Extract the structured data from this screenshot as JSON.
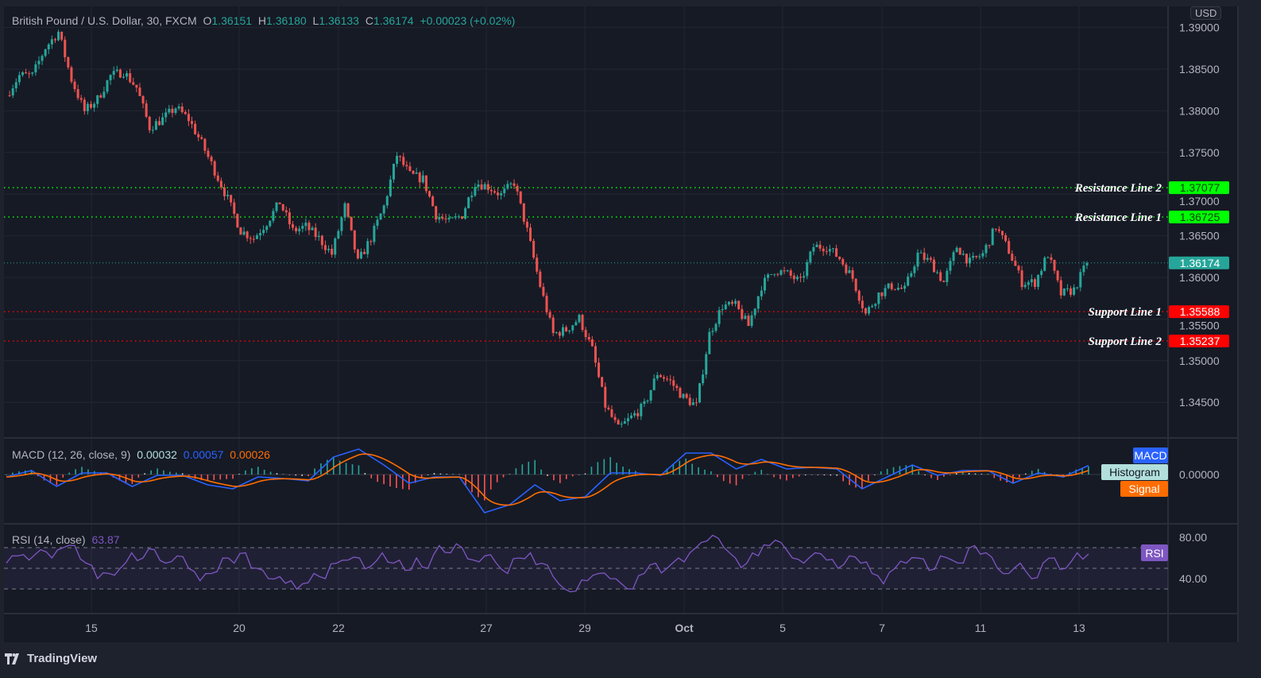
{
  "header": {
    "symbol": "British Pound / U.S. Dollar, 30, FXCM",
    "open_label": "O",
    "open": "1.36151",
    "high_label": "H",
    "high": "1.36180",
    "low_label": "L",
    "low": "1.36133",
    "close_label": "C",
    "close": "1.36174",
    "change": "+0.00023 (+0.02%)"
  },
  "currency": "USD",
  "macd_legend": {
    "title": "MACD (12, 26, close, 9)",
    "histogram": "0.00032",
    "macd": "0.00057",
    "signal": "0.00026"
  },
  "rsi_legend": {
    "title": "RSI (14, close)",
    "value": "63.87"
  },
  "branding": {
    "name": "TradingView"
  },
  "colors": {
    "up": "#26a69a",
    "down": "#ef5350",
    "macd": "#2962ff",
    "signal": "#ff6d00",
    "rsi": "#7e57c2",
    "resistance": "#00ff00",
    "support": "#ff0000",
    "background": "#161a25"
  },
  "chart_data": [
    {
      "type": "candlestick",
      "title": "British Pound / U.S. Dollar, 30, FXCM",
      "x_ticks": [
        "15",
        "20",
        "22",
        "27",
        "29",
        "Oct",
        "5",
        "7",
        "11",
        "13"
      ],
      "y_ticks": [
        "1.39000",
        "1.38500",
        "1.38000",
        "1.37500",
        "1.37000",
        "1.36500",
        "1.36000",
        "1.35500",
        "1.35000",
        "1.34500"
      ],
      "ylim": [
        1.3405,
        1.3905
      ],
      "grid": true,
      "close_path": [
        1.38185,
        1.38424,
        1.38424,
        1.38758,
        1.38948,
        1.38376,
        1.37994,
        1.3814,
        1.3842,
        1.3847,
        1.3828,
        1.378,
        1.379,
        1.3804,
        1.379,
        1.3761,
        1.3728,
        1.3694,
        1.3656,
        1.3647,
        1.3666,
        1.369,
        1.3656,
        1.3661,
        1.3647,
        1.3628,
        1.3685,
        1.3618,
        1.3647,
        1.3685,
        1.3747,
        1.3723,
        1.3718,
        1.3675,
        1.3666,
        1.3675,
        1.3714,
        1.3709,
        1.3699,
        1.3714,
        1.3656,
        1.359,
        1.3532,
        1.3537,
        1.3551,
        1.3513,
        1.3446,
        1.3418,
        1.3432,
        1.3446,
        1.3485,
        1.3475,
        1.3456,
        1.3446,
        1.3532,
        1.3566,
        1.3566,
        1.3542,
        1.359,
        1.3609,
        1.3604,
        1.3594,
        1.3637,
        1.3637,
        1.3623,
        1.3599,
        1.3556,
        1.358,
        1.359,
        1.3585,
        1.3628,
        1.3618,
        1.3594,
        1.3637,
        1.3618,
        1.3628,
        1.3661,
        1.3632,
        1.3594,
        1.3594,
        1.3628,
        1.358,
        1.3585,
        1.36174
      ],
      "current_price": {
        "value": 1.36174,
        "label": "1.36174"
      },
      "levels": [
        {
          "name": "Resistance Line 2",
          "value": 1.37077,
          "label": "1.37077",
          "kind": "resistance"
        },
        {
          "name": "Resistance Line 1",
          "value": 1.36725,
          "label": "1.36725",
          "kind": "resistance"
        },
        {
          "name": "Support Line 1",
          "value": 1.35588,
          "label": "1.35588",
          "kind": "support"
        },
        {
          "name": "Support Line 2",
          "value": 1.35237,
          "label": "1.35237",
          "kind": "support"
        }
      ]
    },
    {
      "type": "line",
      "title": "MACD (12, 26, close, 9)",
      "y_ticks": [
        "0.00000"
      ],
      "series_labels": [
        "MACD",
        "Histogram",
        "Signal"
      ],
      "macd": [
        -0.00015,
        0.00025,
        -0.00075,
        0.0001,
        0.0001,
        -0.00075,
        -5e-05,
        -5e-05,
        -0.00065,
        -0.0009,
        -0.00015,
        -0.00025,
        -0.0004,
        0.0011,
        0.0016,
        0.0006,
        -0.00055,
        -0.00015,
        -0.00015,
        -0.0024,
        -0.0019,
        -0.00065,
        -0.00165,
        -0.0014,
        0.0001,
        0.0001,
        -5e-05,
        0.00135,
        0.00135,
        0.00035,
        0.00095,
        0.00035,
        0.00045,
        0.00035,
        -0.0009,
        -0.00015,
        0.0006,
        -5e-05,
        0.00025,
        0.00025,
        -0.00055,
        0.0001,
        -0.00015,
        0.00057
      ]
    },
    {
      "type": "line",
      "title": "RSI (14, close)",
      "y_ticks": [
        "80.00",
        "40.00"
      ],
      "band": [
        30,
        70
      ],
      "series_labels": [
        "RSI"
      ],
      "rsi": [
        55,
        62,
        58,
        68,
        60,
        70,
        72,
        55,
        40,
        45,
        50,
        65,
        60,
        68,
        55,
        62,
        50,
        38,
        45,
        60,
        55,
        65,
        50,
        40,
        42,
        38,
        35,
        45,
        40,
        55,
        58,
        60,
        52,
        65,
        55,
        48,
        60,
        50,
        72,
        65,
        70,
        58,
        62,
        55,
        45,
        60,
        65,
        55,
        42,
        30,
        28,
        38,
        45,
        40,
        35,
        30,
        45,
        55,
        50,
        60,
        65,
        75,
        82,
        70,
        60,
        55,
        62,
        72,
        75,
        60,
        55,
        65,
        58,
        50,
        62,
        55,
        45,
        35,
        50,
        55,
        60,
        48,
        62,
        58,
        55,
        72,
        65,
        50,
        45,
        55,
        40,
        55,
        60,
        50,
        65,
        63.87
      ]
    }
  ]
}
